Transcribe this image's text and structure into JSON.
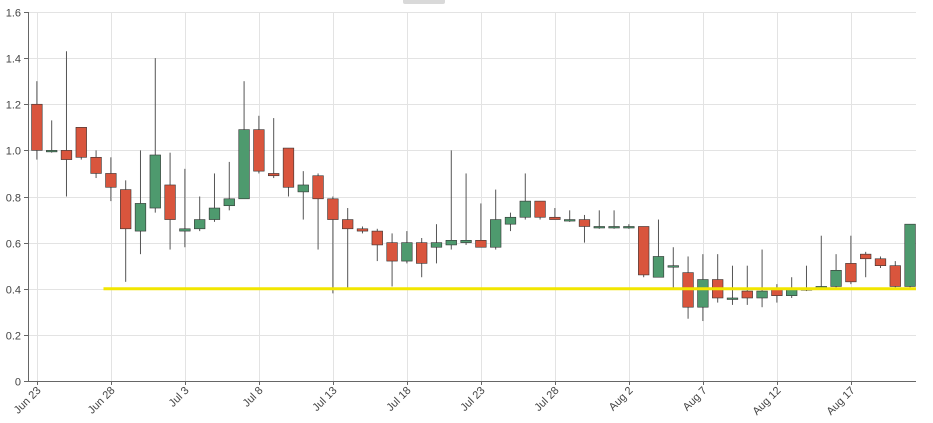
{
  "chart_data": {
    "type": "candlestick",
    "x_tick_labels": [
      "Jun 23",
      "Jun 28",
      "Jul 3",
      "Jul 8",
      "Jul 13",
      "Jul 18",
      "Jul 23",
      "Jul 28",
      "Aug 2",
      "Aug 7",
      "Aug 12",
      "Aug 17"
    ],
    "x_tick_days": [
      0,
      5,
      10,
      15,
      20,
      25,
      30,
      35,
      40,
      45,
      50,
      55
    ],
    "y_ticks": [
      0,
      0.2,
      0.4,
      0.6,
      0.8,
      1.0,
      1.2,
      1.4,
      1.6
    ],
    "y_tick_labels": [
      "0",
      "0.2",
      "0.4",
      "0.6",
      "0.8",
      "1.0",
      "1.2",
      "1.4",
      "1.6"
    ],
    "ylim": [
      0,
      1.6
    ],
    "xlim_days": [
      -0.6,
      59.4
    ],
    "grid": true,
    "colors": {
      "up": "#4e9a6e",
      "down": "#d9553d",
      "wick": "#555555",
      "grid": "#e3e3e3",
      "axis": "#666666",
      "support": "#f2e600"
    },
    "support_line": {
      "value": 0.4,
      "start_day": 4.5,
      "end_day": 59.4
    },
    "candles": [
      {
        "date": "Jun 23",
        "day": 0,
        "open": 1.2,
        "high": 1.3,
        "low": 0.96,
        "close": 1.0
      },
      {
        "date": "Jun 24",
        "day": 1,
        "open": 1.0,
        "high": 1.13,
        "low": 0.99,
        "close": 1.0
      },
      {
        "date": "Jun 25",
        "day": 2,
        "open": 1.0,
        "high": 1.43,
        "low": 0.8,
        "close": 0.96
      },
      {
        "date": "Jun 26",
        "day": 3,
        "open": 1.1,
        "high": 1.1,
        "low": 0.96,
        "close": 0.97
      },
      {
        "date": "Jun 27",
        "day": 4,
        "open": 0.97,
        "high": 1.0,
        "low": 0.88,
        "close": 0.9
      },
      {
        "date": "Jun 28",
        "day": 5,
        "open": 0.9,
        "high": 0.97,
        "low": 0.78,
        "close": 0.84
      },
      {
        "date": "Jun 29",
        "day": 6,
        "open": 0.83,
        "high": 0.87,
        "low": 0.43,
        "close": 0.66
      },
      {
        "date": "Jun 30",
        "day": 7,
        "open": 0.65,
        "high": 1.0,
        "low": 0.55,
        "close": 0.77
      },
      {
        "date": "Jul 1",
        "day": 8,
        "open": 0.75,
        "high": 1.4,
        "low": 0.73,
        "close": 0.98
      },
      {
        "date": "Jul 2",
        "day": 9,
        "open": 0.85,
        "high": 0.99,
        "low": 0.57,
        "close": 0.7
      },
      {
        "date": "Jul 3",
        "day": 10,
        "open": 0.65,
        "high": 0.92,
        "low": 0.58,
        "close": 0.66
      },
      {
        "date": "Jul 4",
        "day": 11,
        "open": 0.66,
        "high": 0.8,
        "low": 0.65,
        "close": 0.7
      },
      {
        "date": "Jul 5",
        "day": 12,
        "open": 0.7,
        "high": 0.9,
        "low": 0.69,
        "close": 0.75
      },
      {
        "date": "Jul 6",
        "day": 13,
        "open": 0.76,
        "high": 0.95,
        "low": 0.74,
        "close": 0.79
      },
      {
        "date": "Jul 7",
        "day": 14,
        "open": 0.79,
        "high": 1.3,
        "low": 0.79,
        "close": 1.09
      },
      {
        "date": "Jul 8",
        "day": 15,
        "open": 1.09,
        "high": 1.15,
        "low": 0.9,
        "close": 0.91
      },
      {
        "date": "Jul 9",
        "day": 16,
        "open": 0.9,
        "high": 1.14,
        "low": 0.88,
        "close": 0.89
      },
      {
        "date": "Jul 10",
        "day": 17,
        "open": 1.01,
        "high": 1.01,
        "low": 0.8,
        "close": 0.84
      },
      {
        "date": "Jul 11",
        "day": 18,
        "open": 0.82,
        "high": 0.91,
        "low": 0.7,
        "close": 0.85
      },
      {
        "date": "Jul 12",
        "day": 19,
        "open": 0.89,
        "high": 0.9,
        "low": 0.57,
        "close": 0.79
      },
      {
        "date": "Jul 13",
        "day": 20,
        "open": 0.79,
        "high": 0.8,
        "low": 0.38,
        "close": 0.7
      },
      {
        "date": "Jul 14",
        "day": 21,
        "open": 0.7,
        "high": 0.75,
        "low": 0.4,
        "close": 0.66
      },
      {
        "date": "Jul 15",
        "day": 22,
        "open": 0.66,
        "high": 0.67,
        "low": 0.64,
        "close": 0.65
      },
      {
        "date": "Jul 16",
        "day": 23,
        "open": 0.65,
        "high": 0.66,
        "low": 0.52,
        "close": 0.59
      },
      {
        "date": "Jul 17",
        "day": 24,
        "open": 0.6,
        "high": 0.64,
        "low": 0.41,
        "close": 0.52
      },
      {
        "date": "Jul 18",
        "day": 25,
        "open": 0.52,
        "high": 0.65,
        "low": 0.51,
        "close": 0.6
      },
      {
        "date": "Jul 19",
        "day": 26,
        "open": 0.6,
        "high": 0.62,
        "low": 0.45,
        "close": 0.51
      },
      {
        "date": "Jul 20",
        "day": 27,
        "open": 0.58,
        "high": 0.68,
        "low": 0.51,
        "close": 0.6
      },
      {
        "date": "Jul 21",
        "day": 28,
        "open": 0.59,
        "high": 1.0,
        "low": 0.57,
        "close": 0.61
      },
      {
        "date": "Jul 22",
        "day": 29,
        "open": 0.6,
        "high": 0.9,
        "low": 0.59,
        "close": 0.61
      },
      {
        "date": "Jul 23",
        "day": 30,
        "open": 0.61,
        "high": 0.77,
        "low": 0.58,
        "close": 0.58
      },
      {
        "date": "Jul 24",
        "day": 31,
        "open": 0.58,
        "high": 0.83,
        "low": 0.57,
        "close": 0.7
      },
      {
        "date": "Jul 25",
        "day": 32,
        "open": 0.68,
        "high": 0.73,
        "low": 0.65,
        "close": 0.71
      },
      {
        "date": "Jul 26",
        "day": 33,
        "open": 0.71,
        "high": 0.9,
        "low": 0.7,
        "close": 0.78
      },
      {
        "date": "Jul 27",
        "day": 34,
        "open": 0.78,
        "high": 0.78,
        "low": 0.7,
        "close": 0.71
      },
      {
        "date": "Jul 28",
        "day": 35,
        "open": 0.71,
        "high": 0.75,
        "low": 0.7,
        "close": 0.7
      },
      {
        "date": "Jul 29",
        "day": 36,
        "open": 0.7,
        "high": 0.74,
        "low": 0.69,
        "close": 0.7
      },
      {
        "date": "Jul 30",
        "day": 37,
        "open": 0.7,
        "high": 0.72,
        "low": 0.6,
        "close": 0.67
      },
      {
        "date": "Jul 31",
        "day": 38,
        "open": 0.67,
        "high": 0.74,
        "low": 0.66,
        "close": 0.67
      },
      {
        "date": "Aug 1",
        "day": 39,
        "open": 0.67,
        "high": 0.74,
        "low": 0.66,
        "close": 0.67
      },
      {
        "date": "Aug 2",
        "day": 40,
        "open": 0.67,
        "high": 0.68,
        "low": 0.66,
        "close": 0.67
      },
      {
        "date": "Aug 3",
        "day": 41,
        "open": 0.67,
        "high": 0.67,
        "low": 0.45,
        "close": 0.46
      },
      {
        "date": "Aug 4",
        "day": 42,
        "open": 0.45,
        "high": 0.7,
        "low": 0.45,
        "close": 0.54
      },
      {
        "date": "Aug 5",
        "day": 43,
        "open": 0.5,
        "high": 0.58,
        "low": 0.4,
        "close": 0.5
      },
      {
        "date": "Aug 6",
        "day": 44,
        "open": 0.47,
        "high": 0.54,
        "low": 0.27,
        "close": 0.32
      },
      {
        "date": "Aug 7",
        "day": 45,
        "open": 0.32,
        "high": 0.55,
        "low": 0.26,
        "close": 0.44
      },
      {
        "date": "Aug 8",
        "day": 46,
        "open": 0.44,
        "high": 0.55,
        "low": 0.34,
        "close": 0.36
      },
      {
        "date": "Aug 9",
        "day": 47,
        "open": 0.36,
        "high": 0.5,
        "low": 0.33,
        "close": 0.36
      },
      {
        "date": "Aug 10",
        "day": 48,
        "open": 0.39,
        "high": 0.5,
        "low": 0.33,
        "close": 0.36
      },
      {
        "date": "Aug 11",
        "day": 49,
        "open": 0.36,
        "high": 0.57,
        "low": 0.32,
        "close": 0.39
      },
      {
        "date": "Aug 12",
        "day": 50,
        "open": 0.4,
        "high": 0.42,
        "low": 0.34,
        "close": 0.37
      },
      {
        "date": "Aug 13",
        "day": 51,
        "open": 0.37,
        "high": 0.45,
        "low": 0.36,
        "close": 0.4
      },
      {
        "date": "Aug 14",
        "day": 52,
        "open": 0.4,
        "high": 0.5,
        "low": 0.39,
        "close": 0.4
      },
      {
        "date": "Aug 15",
        "day": 53,
        "open": 0.4,
        "high": 0.63,
        "low": 0.4,
        "close": 0.41
      },
      {
        "date": "Aug 16",
        "day": 54,
        "open": 0.41,
        "high": 0.55,
        "low": 0.4,
        "close": 0.48
      },
      {
        "date": "Aug 17",
        "day": 55,
        "open": 0.51,
        "high": 0.63,
        "low": 0.42,
        "close": 0.43
      },
      {
        "date": "Aug 18",
        "day": 56,
        "open": 0.55,
        "high": 0.56,
        "low": 0.45,
        "close": 0.53
      },
      {
        "date": "Aug 19",
        "day": 57,
        "open": 0.53,
        "high": 0.54,
        "low": 0.49,
        "close": 0.5
      },
      {
        "date": "Aug 20",
        "day": 58,
        "open": 0.5,
        "high": 0.52,
        "low": 0.4,
        "close": 0.41
      },
      {
        "date": "Aug 21",
        "day": 59,
        "open": 0.41,
        "high": 0.68,
        "low": 0.4,
        "close": 0.68
      }
    ]
  }
}
